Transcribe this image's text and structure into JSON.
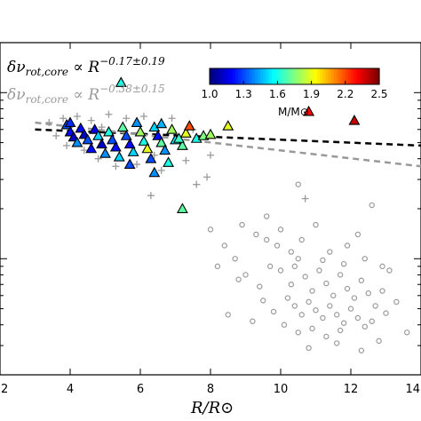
{
  "chart_data": {
    "type": "scatter",
    "title": "",
    "xlabel": "R/R⊙",
    "ylabel": "",
    "xlim": [
      2,
      14
    ],
    "ylim": [
      0.02,
      2.0
    ],
    "y_scale": "log",
    "x_ticks": [
      "2",
      "4",
      "6",
      "8",
      "10",
      "12",
      "14"
    ],
    "colorbar": {
      "label": "M/M⊙",
      "range": [
        1.0,
        2.5
      ],
      "ticks": [
        "1.0",
        "1.3",
        "1.6",
        "1.9",
        "2.2",
        "2.5"
      ],
      "colormap": "jet"
    },
    "fits": [
      {
        "formula_left": "δν",
        "formula_sub": "rot,core",
        "formula_mid": " ∝ R",
        "formula_exp": "−0.17±0.19",
        "color": "#000000",
        "x": [
          3.0,
          14.0
        ],
        "y": [
          0.6,
          0.48
        ]
      },
      {
        "formula_left": "δν",
        "formula_sub": "rot,core",
        "formula_mid": " ∝ R",
        "formula_exp": "−0.38±0.15",
        "color": "#999999",
        "x": [
          3.0,
          14.0
        ],
        "y": [
          0.66,
          0.36
        ]
      }
    ],
    "series": [
      {
        "marker": "triangle",
        "points": [
          {
            "x": 3.9,
            "y": 0.64,
            "m": 1.3
          },
          {
            "x": 4.0,
            "y": 0.58,
            "m": 1.2
          },
          {
            "x": 4.1,
            "y": 0.54,
            "m": 1.1
          },
          {
            "x": 4.2,
            "y": 0.5,
            "m": 1.4
          },
          {
            "x": 4.3,
            "y": 0.61,
            "m": 1.2
          },
          {
            "x": 4.4,
            "y": 0.56,
            "m": 1.1
          },
          {
            "x": 4.5,
            "y": 0.52,
            "m": 1.3
          },
          {
            "x": 4.6,
            "y": 0.46,
            "m": 1.2
          },
          {
            "x": 4.7,
            "y": 0.6,
            "m": 1.15
          },
          {
            "x": 4.8,
            "y": 0.55,
            "m": 1.5
          },
          {
            "x": 4.9,
            "y": 0.49,
            "m": 1.1
          },
          {
            "x": 5.0,
            "y": 0.43,
            "m": 1.4
          },
          {
            "x": 5.1,
            "y": 0.58,
            "m": 1.6
          },
          {
            "x": 5.2,
            "y": 0.52,
            "m": 1.3
          },
          {
            "x": 5.3,
            "y": 0.47,
            "m": 1.2
          },
          {
            "x": 5.4,
            "y": 0.41,
            "m": 1.5
          },
          {
            "x": 5.45,
            "y": 1.15,
            "m": 1.6
          },
          {
            "x": 5.5,
            "y": 0.62,
            "m": 1.7
          },
          {
            "x": 5.6,
            "y": 0.55,
            "m": 1.3
          },
          {
            "x": 5.7,
            "y": 0.49,
            "m": 1.2
          },
          {
            "x": 5.8,
            "y": 0.44,
            "m": 1.5
          },
          {
            "x": 5.9,
            "y": 0.66,
            "m": 1.4
          },
          {
            "x": 6.0,
            "y": 0.58,
            "m": 1.8
          },
          {
            "x": 6.1,
            "y": 0.51,
            "m": 1.6
          },
          {
            "x": 6.2,
            "y": 0.46,
            "m": 1.9
          },
          {
            "x": 6.3,
            "y": 0.4,
            "m": 1.3
          },
          {
            "x": 6.4,
            "y": 0.62,
            "m": 1.5
          },
          {
            "x": 6.5,
            "y": 0.55,
            "m": 1.2
          },
          {
            "x": 6.6,
            "y": 0.5,
            "m": 1.7
          },
          {
            "x": 6.7,
            "y": 0.45,
            "m": 1.4
          },
          {
            "x": 6.8,
            "y": 0.38,
            "m": 1.6
          },
          {
            "x": 6.9,
            "y": 0.6,
            "m": 1.8
          },
          {
            "x": 7.0,
            "y": 0.52,
            "m": 1.55
          },
          {
            "x": 7.2,
            "y": 0.48,
            "m": 1.7
          },
          {
            "x": 7.3,
            "y": 0.57,
            "m": 1.9
          },
          {
            "x": 7.4,
            "y": 0.63,
            "m": 2.2
          },
          {
            "x": 7.6,
            "y": 0.53,
            "m": 1.6
          },
          {
            "x": 7.8,
            "y": 0.55,
            "m": 1.75
          },
          {
            "x": 8.0,
            "y": 0.56,
            "m": 1.8
          },
          {
            "x": 7.2,
            "y": 0.2,
            "m": 1.7
          },
          {
            "x": 6.4,
            "y": 0.33,
            "m": 1.4
          },
          {
            "x": 5.7,
            "y": 0.37,
            "m": 1.3
          },
          {
            "x": 10.8,
            "y": 0.77,
            "m": 2.3
          },
          {
            "x": 12.1,
            "y": 0.68,
            "m": 2.4
          },
          {
            "x": 8.5,
            "y": 0.63,
            "m": 1.9
          },
          {
            "x": 4.0,
            "y": 0.66,
            "m": 1.25
          },
          {
            "x": 6.6,
            "y": 0.65,
            "m": 1.45
          },
          {
            "x": 7.1,
            "y": 0.53,
            "m": 1.65
          }
        ]
      },
      {
        "marker": "plus",
        "points": [
          {
            "x": 3.4,
            "y": 0.66
          },
          {
            "x": 3.6,
            "y": 0.55
          },
          {
            "x": 3.8,
            "y": 0.7
          },
          {
            "x": 4.2,
            "y": 0.72
          },
          {
            "x": 4.4,
            "y": 0.45
          },
          {
            "x": 4.6,
            "y": 0.68
          },
          {
            "x": 4.8,
            "y": 0.4
          },
          {
            "x": 5.1,
            "y": 0.74
          },
          {
            "x": 5.3,
            "y": 0.36
          },
          {
            "x": 5.6,
            "y": 0.7
          },
          {
            "x": 5.9,
            "y": 0.37
          },
          {
            "x": 6.1,
            "y": 0.72
          },
          {
            "x": 6.4,
            "y": 0.42
          },
          {
            "x": 6.6,
            "y": 0.34
          },
          {
            "x": 6.9,
            "y": 0.7
          },
          {
            "x": 7.3,
            "y": 0.39
          },
          {
            "x": 7.6,
            "y": 0.28
          },
          {
            "x": 7.9,
            "y": 0.31
          },
          {
            "x": 8.0,
            "y": 0.42
          },
          {
            "x": 3.9,
            "y": 0.48
          },
          {
            "x": 4.9,
            "y": 0.62
          },
          {
            "x": 6.3,
            "y": 0.24
          },
          {
            "x": 7.5,
            "y": 0.6
          },
          {
            "x": 10.7,
            "y": 0.23
          }
        ]
      },
      {
        "marker": "circle",
        "points": [
          {
            "x": 8.0,
            "y": 0.15
          },
          {
            "x": 8.4,
            "y": 0.12
          },
          {
            "x": 8.9,
            "y": 0.16
          },
          {
            "x": 9.3,
            "y": 0.14
          },
          {
            "x": 9.6,
            "y": 0.13
          },
          {
            "x": 8.2,
            "y": 0.09
          },
          {
            "x": 8.7,
            "y": 0.1
          },
          {
            "x": 9.0,
            "y": 0.08
          },
          {
            "x": 9.7,
            "y": 0.09
          },
          {
            "x": 10.0,
            "y": 0.085
          },
          {
            "x": 10.3,
            "y": 0.07
          },
          {
            "x": 10.5,
            "y": 0.1
          },
          {
            "x": 10.7,
            "y": 0.078
          },
          {
            "x": 10.9,
            "y": 0.064
          },
          {
            "x": 11.1,
            "y": 0.085
          },
          {
            "x": 11.3,
            "y": 0.071
          },
          {
            "x": 11.5,
            "y": 0.06
          },
          {
            "x": 11.7,
            "y": 0.08
          },
          {
            "x": 11.9,
            "y": 0.066
          },
          {
            "x": 12.1,
            "y": 0.058
          },
          {
            "x": 12.3,
            "y": 0.074
          },
          {
            "x": 12.5,
            "y": 0.062
          },
          {
            "x": 12.7,
            "y": 0.052
          },
          {
            "x": 12.9,
            "y": 0.09
          },
          {
            "x": 10.2,
            "y": 0.058
          },
          {
            "x": 10.4,
            "y": 0.052
          },
          {
            "x": 10.6,
            "y": 0.046
          },
          {
            "x": 10.8,
            "y": 0.055
          },
          {
            "x": 11.0,
            "y": 0.049
          },
          {
            "x": 11.2,
            "y": 0.044
          },
          {
            "x": 11.4,
            "y": 0.052
          },
          {
            "x": 11.6,
            "y": 0.046
          },
          {
            "x": 11.8,
            "y": 0.041
          },
          {
            "x": 12.0,
            "y": 0.05
          },
          {
            "x": 12.2,
            "y": 0.044
          },
          {
            "x": 12.4,
            "y": 0.039
          },
          {
            "x": 9.8,
            "y": 0.048
          },
          {
            "x": 9.5,
            "y": 0.056
          },
          {
            "x": 9.2,
            "y": 0.042
          },
          {
            "x": 10.1,
            "y": 0.04
          },
          {
            "x": 10.5,
            "y": 0.036
          },
          {
            "x": 10.9,
            "y": 0.038
          },
          {
            "x": 11.3,
            "y": 0.034
          },
          {
            "x": 11.7,
            "y": 0.037
          },
          {
            "x": 12.6,
            "y": 0.042
          },
          {
            "x": 13.0,
            "y": 0.047
          },
          {
            "x": 13.6,
            "y": 0.036
          },
          {
            "x": 12.8,
            "y": 0.032
          },
          {
            "x": 8.5,
            "y": 0.046
          },
          {
            "x": 9.9,
            "y": 0.12
          },
          {
            "x": 10.6,
            "y": 0.13
          },
          {
            "x": 11.4,
            "y": 0.11
          },
          {
            "x": 12.4,
            "y": 0.1
          },
          {
            "x": 13.1,
            "y": 0.085
          },
          {
            "x": 11.2,
            "y": 0.098
          },
          {
            "x": 10.3,
            "y": 0.11
          },
          {
            "x": 9.4,
            "y": 0.068
          },
          {
            "x": 8.8,
            "y": 0.075
          },
          {
            "x": 11.9,
            "y": 0.12
          },
          {
            "x": 10.0,
            "y": 0.15
          },
          {
            "x": 11.0,
            "y": 0.16
          },
          {
            "x": 12.2,
            "y": 0.14
          },
          {
            "x": 9.6,
            "y": 0.18
          },
          {
            "x": 10.5,
            "y": 0.28
          },
          {
            "x": 12.6,
            "y": 0.21
          },
          {
            "x": 11.6,
            "y": 0.031
          },
          {
            "x": 10.8,
            "y": 0.029
          },
          {
            "x": 12.3,
            "y": 0.028
          },
          {
            "x": 13.3,
            "y": 0.055
          },
          {
            "x": 12.9,
            "y": 0.064
          },
          {
            "x": 10.4,
            "y": 0.09
          },
          {
            "x": 11.8,
            "y": 0.093
          }
        ]
      }
    ]
  }
}
